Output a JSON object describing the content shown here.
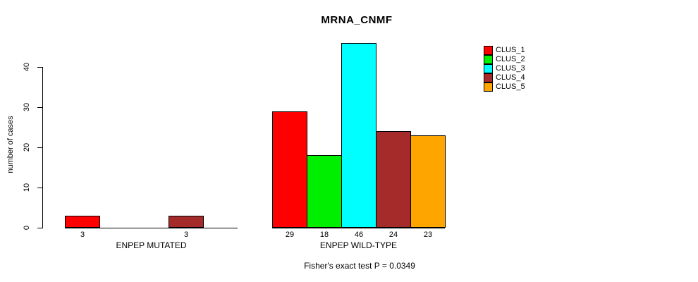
{
  "chart_data": {
    "type": "bar",
    "title": "MRNA_CNMF",
    "ylabel": "number of cases",
    "subtitle": "Fisher's exact test P = 0.0349",
    "yaxis": {
      "ticks": [
        0,
        10,
        20,
        30,
        40
      ],
      "range": [
        0,
        46
      ],
      "grid": false
    },
    "legend_position": "top-right",
    "legend": [
      {
        "label": "CLUS_1",
        "color": "#FF0000"
      },
      {
        "label": "CLUS_2",
        "color": "#00EE00"
      },
      {
        "label": "CLUS_3",
        "color": "#00FFFF"
      },
      {
        "label": "CLUS_4",
        "color": "#A52A2A"
      },
      {
        "label": "CLUS_5",
        "color": "#FFA500"
      }
    ],
    "groups": [
      {
        "label": "ENPEP MUTATED",
        "values": [
          3,
          null,
          null,
          3,
          null
        ],
        "value_labels": [
          "3",
          "3"
        ]
      },
      {
        "label": "ENPEP WILD-TYPE",
        "values": [
          29,
          18,
          46,
          24,
          23
        ],
        "value_labels": [
          "29",
          "18",
          "46",
          "24",
          "23"
        ]
      }
    ]
  }
}
